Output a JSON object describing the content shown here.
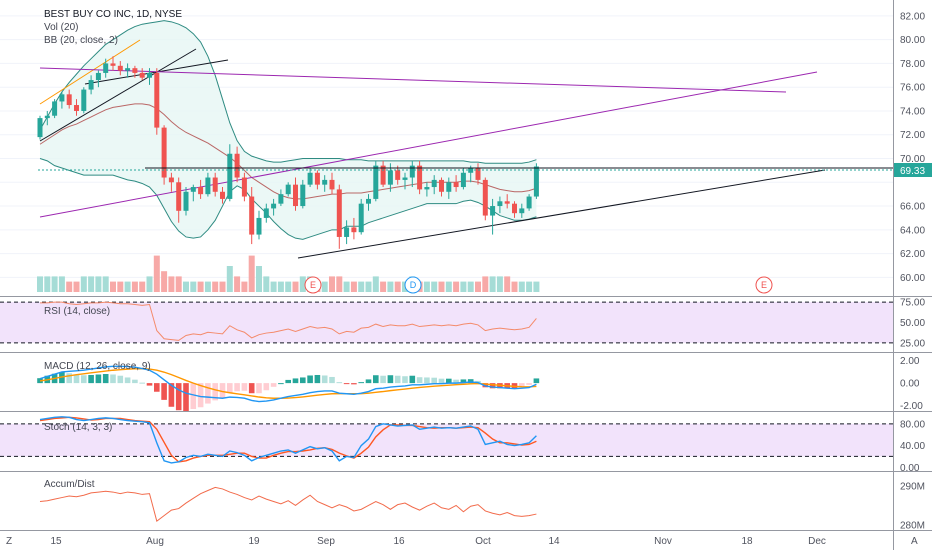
{
  "header": {
    "title": "BEST BUY CO INC, 1D, NYSE",
    "vol_label": "Vol (20)",
    "bb_label": "BB (20, close, 2)"
  },
  "price_axis": {
    "ticks": [
      "82.00",
      "80.00",
      "78.00",
      "76.00",
      "74.00",
      "72.00",
      "70.00",
      "66.00",
      "64.00",
      "62.00",
      "60.00"
    ],
    "current_price": "69.33"
  },
  "time_axis": {
    "labels": [
      "15",
      "Aug",
      "19",
      "Sep",
      "16",
      "Oct",
      "14",
      "Nov",
      "18",
      "Dec"
    ],
    "corner_left": "Z",
    "corner_right": "A"
  },
  "rsi_panel": {
    "label": "RSI (14, close)",
    "ticks": [
      "75.00",
      "50.00",
      "25.00"
    ]
  },
  "macd_panel": {
    "label": "MACD (12, 26, close, 9)",
    "ticks": [
      "2.00",
      "0.00",
      "-2.00"
    ]
  },
  "stoch_panel": {
    "label": "Stoch (14, 3, 3)",
    "ticks": [
      "80.00",
      "40.00",
      "0.00"
    ]
  },
  "ad_panel": {
    "label": "Accum/Dist",
    "ticks": [
      "290M",
      "280M"
    ]
  },
  "event_markers": [
    {
      "letter": "E",
      "type": "earnings"
    },
    {
      "letter": "D",
      "type": "dividend"
    },
    {
      "letter": "E",
      "type": "earnings"
    }
  ],
  "colors": {
    "up": "#26a69a",
    "down": "#ef5350",
    "vol_up": "#a5dcd6",
    "vol_down": "#f7a9a7",
    "bb_line": "#2e8b82",
    "bb_fill": "#e6f6f4",
    "bb_mid": "#a52a2a",
    "trend_black": "#131722",
    "trend_purple": "#9c27b0",
    "trend_orange": "#ff9800",
    "rsi_line": "#f48a6a",
    "osc_band": "#f2e3fb",
    "macd_line": "#2196f3",
    "signal_line": "#ff9800",
    "stoch_k": "#2196f3",
    "stoch_d": "#ff5722",
    "ad_line": "#f26b4b",
    "price_tag": "#26a69a"
  },
  "chart_data": [
    {
      "type": "candlestick",
      "title": "BEST BUY CO INC, 1D, NYSE",
      "ylim": [
        58.6,
        83.0
      ],
      "start_date": "2019-07-12",
      "candles": [
        {
          "o": 71.8,
          "h": 73.6,
          "l": 71.6,
          "c": 73.4
        },
        {
          "o": 73.4,
          "h": 74.0,
          "l": 72.8,
          "c": 73.6
        },
        {
          "o": 73.6,
          "h": 75.0,
          "l": 73.4,
          "c": 74.8
        },
        {
          "o": 74.8,
          "h": 75.6,
          "l": 74.2,
          "c": 75.4
        },
        {
          "o": 75.4,
          "h": 75.8,
          "l": 74.2,
          "c": 74.5
        },
        {
          "o": 74.5,
          "h": 75.0,
          "l": 73.6,
          "c": 74.0
        },
        {
          "o": 74.0,
          "h": 76.0,
          "l": 73.8,
          "c": 75.8
        },
        {
          "o": 75.8,
          "h": 77.0,
          "l": 75.4,
          "c": 76.6
        },
        {
          "o": 76.6,
          "h": 77.4,
          "l": 76.0,
          "c": 77.2
        },
        {
          "o": 77.2,
          "h": 78.4,
          "l": 76.8,
          "c": 78.0
        },
        {
          "o": 78.0,
          "h": 78.6,
          "l": 77.4,
          "c": 77.8
        },
        {
          "o": 77.8,
          "h": 78.2,
          "l": 77.0,
          "c": 77.4
        },
        {
          "o": 77.4,
          "h": 78.0,
          "l": 76.8,
          "c": 77.6
        },
        {
          "o": 77.6,
          "h": 77.8,
          "l": 76.8,
          "c": 77.2
        },
        {
          "o": 77.2,
          "h": 77.6,
          "l": 76.6,
          "c": 76.8
        },
        {
          "o": 76.8,
          "h": 77.6,
          "l": 76.2,
          "c": 77.2
        },
        {
          "o": 77.2,
          "h": 77.6,
          "l": 72.0,
          "c": 72.6
        },
        {
          "o": 72.6,
          "h": 72.8,
          "l": 67.8,
          "c": 68.4
        },
        {
          "o": 68.4,
          "h": 68.8,
          "l": 67.2,
          "c": 68.0
        },
        {
          "o": 68.0,
          "h": 68.4,
          "l": 64.6,
          "c": 65.6
        },
        {
          "o": 65.6,
          "h": 67.6,
          "l": 65.2,
          "c": 67.2
        },
        {
          "o": 67.2,
          "h": 67.8,
          "l": 66.4,
          "c": 67.6
        },
        {
          "o": 67.6,
          "h": 68.2,
          "l": 66.6,
          "c": 67.0
        },
        {
          "o": 67.0,
          "h": 68.8,
          "l": 66.8,
          "c": 68.4
        },
        {
          "o": 68.4,
          "h": 68.8,
          "l": 66.8,
          "c": 67.2
        },
        {
          "o": 67.2,
          "h": 67.6,
          "l": 66.2,
          "c": 66.6
        },
        {
          "o": 66.6,
          "h": 71.2,
          "l": 66.4,
          "c": 70.4
        },
        {
          "o": 70.4,
          "h": 71.0,
          "l": 68.0,
          "c": 68.4
        },
        {
          "o": 68.4,
          "h": 68.8,
          "l": 66.4,
          "c": 66.8
        },
        {
          "o": 66.8,
          "h": 67.6,
          "l": 62.8,
          "c": 63.6
        },
        {
          "o": 63.6,
          "h": 65.6,
          "l": 63.2,
          "c": 65.0
        },
        {
          "o": 65.0,
          "h": 66.2,
          "l": 64.6,
          "c": 65.8
        },
        {
          "o": 65.8,
          "h": 66.6,
          "l": 65.2,
          "c": 66.2
        },
        {
          "o": 66.2,
          "h": 67.4,
          "l": 66.0,
          "c": 67.0
        },
        {
          "o": 67.0,
          "h": 68.0,
          "l": 66.8,
          "c": 67.8
        },
        {
          "o": 67.8,
          "h": 68.4,
          "l": 65.6,
          "c": 66.0
        },
        {
          "o": 66.0,
          "h": 68.2,
          "l": 65.8,
          "c": 67.8
        },
        {
          "o": 67.8,
          "h": 69.2,
          "l": 67.6,
          "c": 68.8
        },
        {
          "o": 68.8,
          "h": 69.0,
          "l": 67.4,
          "c": 67.8
        },
        {
          "o": 67.8,
          "h": 68.6,
          "l": 67.2,
          "c": 68.2
        },
        {
          "o": 68.2,
          "h": 68.8,
          "l": 67.0,
          "c": 67.4
        },
        {
          "o": 67.4,
          "h": 67.8,
          "l": 62.4,
          "c": 63.4
        },
        {
          "o": 63.4,
          "h": 64.8,
          "l": 62.8,
          "c": 64.2
        },
        {
          "o": 64.2,
          "h": 65.0,
          "l": 63.2,
          "c": 63.8
        },
        {
          "o": 63.8,
          "h": 66.6,
          "l": 63.6,
          "c": 66.2
        },
        {
          "o": 66.2,
          "h": 67.0,
          "l": 65.6,
          "c": 66.6
        },
        {
          "o": 66.6,
          "h": 69.8,
          "l": 66.4,
          "c": 69.4
        },
        {
          "o": 69.4,
          "h": 69.8,
          "l": 67.6,
          "c": 67.8
        },
        {
          "o": 67.8,
          "h": 69.6,
          "l": 67.2,
          "c": 69.0
        },
        {
          "o": 69.0,
          "h": 69.4,
          "l": 67.8,
          "c": 68.2
        },
        {
          "o": 68.2,
          "h": 68.8,
          "l": 67.4,
          "c": 68.4
        },
        {
          "o": 68.4,
          "h": 69.8,
          "l": 67.6,
          "c": 69.4
        },
        {
          "o": 69.4,
          "h": 69.8,
          "l": 67.0,
          "c": 67.4
        },
        {
          "o": 67.4,
          "h": 68.0,
          "l": 66.8,
          "c": 67.6
        },
        {
          "o": 67.6,
          "h": 68.6,
          "l": 67.0,
          "c": 68.2
        },
        {
          "o": 68.2,
          "h": 68.4,
          "l": 66.8,
          "c": 67.2
        },
        {
          "o": 67.2,
          "h": 68.4,
          "l": 66.6,
          "c": 68.0
        },
        {
          "o": 68.0,
          "h": 68.6,
          "l": 67.2,
          "c": 67.6
        },
        {
          "o": 67.6,
          "h": 69.2,
          "l": 67.4,
          "c": 68.8
        },
        {
          "o": 68.8,
          "h": 69.4,
          "l": 68.0,
          "c": 69.2
        },
        {
          "o": 69.2,
          "h": 69.6,
          "l": 67.8,
          "c": 68.2
        },
        {
          "o": 68.2,
          "h": 68.4,
          "l": 64.8,
          "c": 65.2
        },
        {
          "o": 65.2,
          "h": 66.6,
          "l": 63.6,
          "c": 66.0
        },
        {
          "o": 66.0,
          "h": 66.8,
          "l": 65.4,
          "c": 66.4
        },
        {
          "o": 66.4,
          "h": 67.0,
          "l": 65.8,
          "c": 66.2
        },
        {
          "o": 66.2,
          "h": 66.4,
          "l": 65.0,
          "c": 65.4
        },
        {
          "o": 65.4,
          "h": 66.2,
          "l": 65.0,
          "c": 65.8
        },
        {
          "o": 65.8,
          "h": 67.0,
          "l": 65.6,
          "c": 66.8
        },
        {
          "o": 66.8,
          "h": 69.6,
          "l": 66.6,
          "c": 69.33
        }
      ],
      "volume": [
        3,
        3,
        3,
        3,
        2,
        2,
        3,
        3,
        3,
        3,
        2,
        2,
        2,
        2,
        2,
        3,
        7,
        4,
        3,
        3,
        2,
        2,
        2,
        2,
        2,
        2,
        5,
        3,
        2,
        7,
        5,
        3,
        2,
        2,
        2,
        2,
        3,
        3,
        2,
        2,
        3,
        3,
        2,
        2,
        2,
        2,
        3,
        2,
        2,
        2,
        2,
        3,
        2,
        2,
        2,
        2,
        2,
        2,
        2,
        2,
        2,
        3,
        3,
        3,
        3,
        2,
        2,
        2,
        2
      ],
      "bollinger": {
        "upper": [
          72.4,
          73.5,
          74.6,
          75.6,
          76.4,
          77.1,
          77.8,
          78.4,
          79.0,
          79.6,
          80.0,
          80.4,
          80.8,
          81.1,
          81.3,
          81.4,
          81.5,
          81.6,
          81.5,
          81.3,
          81.0,
          80.5,
          79.8,
          78.6,
          77.0,
          75.0,
          73.0,
          71.5,
          70.6,
          70.2,
          70.0,
          69.8,
          69.7,
          69.7,
          69.8,
          69.9,
          70.0,
          70.0,
          70.0,
          70.0,
          70.0,
          70.0,
          69.9,
          69.9,
          69.9,
          69.8,
          69.8,
          69.8,
          69.8,
          69.8,
          69.8,
          69.8,
          69.8,
          69.8,
          69.8,
          69.8,
          69.8,
          69.8,
          69.8,
          69.7,
          69.7,
          69.6,
          69.6,
          69.6,
          69.6,
          69.6,
          69.6,
          69.7,
          69.9
        ],
        "middle": [
          71.2,
          71.6,
          72.0,
          72.4,
          72.7,
          72.9,
          73.2,
          73.5,
          73.8,
          74.1,
          74.3,
          74.4,
          74.5,
          74.6,
          74.6,
          74.5,
          74.2,
          73.7,
          73.1,
          72.6,
          72.2,
          71.9,
          71.6,
          71.3,
          70.9,
          70.5,
          70.1,
          69.6,
          69.0,
          68.4,
          68.0,
          67.6,
          67.2,
          66.9,
          66.7,
          66.6,
          66.6,
          66.7,
          66.8,
          66.9,
          67.0,
          67.0,
          67.1,
          67.1,
          67.1,
          67.2,
          67.3,
          67.4,
          67.5,
          67.6,
          67.7,
          67.8,
          67.9,
          68.0,
          68.0,
          68.0,
          68.0,
          68.0,
          68.1,
          68.1,
          68.0,
          67.8,
          67.6,
          67.4,
          67.3,
          67.2,
          67.2,
          67.3,
          67.5
        ],
        "lower": [
          70.0,
          69.8,
          69.4,
          69.2,
          69.0,
          68.8,
          68.6,
          68.6,
          68.6,
          68.6,
          68.6,
          68.4,
          68.2,
          68.1,
          67.9,
          67.6,
          66.9,
          65.8,
          64.7,
          63.9,
          63.4,
          63.3,
          63.4,
          64.0,
          64.8,
          66.0,
          67.2,
          67.7,
          67.4,
          66.6,
          66.0,
          65.4,
          64.7,
          64.1,
          63.6,
          63.3,
          63.2,
          63.4,
          63.6,
          63.8,
          64.0,
          64.0,
          64.3,
          64.3,
          64.3,
          64.6,
          64.8,
          65.0,
          65.2,
          65.4,
          65.6,
          65.8,
          66.0,
          66.2,
          66.2,
          66.2,
          66.2,
          66.2,
          66.4,
          66.5,
          66.3,
          66.0,
          65.6,
          65.2,
          65.0,
          64.8,
          64.8,
          64.9,
          65.1
        ]
      }
    },
    {
      "type": "line",
      "title": "RSI (14, close)",
      "ylim": [
        15,
        80
      ],
      "reference_lines": [
        75,
        25
      ],
      "values": [
        74,
        74,
        75,
        75,
        73,
        72,
        73,
        74,
        74,
        75,
        74,
        73,
        73,
        72,
        71,
        72,
        40,
        30,
        29,
        28,
        34,
        36,
        35,
        38,
        37,
        36,
        46,
        41,
        38,
        31,
        35,
        37,
        38,
        40,
        42,
        39,
        42,
        45,
        43,
        44,
        42,
        36,
        39,
        38,
        43,
        44,
        48,
        45,
        47,
        46,
        46,
        48,
        45,
        46,
        47,
        46,
        47,
        46,
        48,
        49,
        47,
        40,
        42,
        43,
        42,
        41,
        42,
        44,
        55
      ]
    },
    {
      "type": "line",
      "title": "MACD (12, 26, close, 9)",
      "ylim": [
        -2.4,
        2.6
      ],
      "macd": [
        0.4,
        0.6,
        0.8,
        1.0,
        1.05,
        1.1,
        1.15,
        1.25,
        1.35,
        1.45,
        1.5,
        1.5,
        1.48,
        1.42,
        1.3,
        1.15,
        0.8,
        0.3,
        -0.2,
        -0.6,
        -0.9,
        -1.05,
        -1.2,
        -1.25,
        -1.3,
        -1.35,
        -1.25,
        -1.28,
        -1.35,
        -1.55,
        -1.65,
        -1.6,
        -1.5,
        -1.35,
        -1.2,
        -1.1,
        -1.0,
        -0.85,
        -0.75,
        -0.7,
        -0.7,
        -0.9,
        -0.95,
        -1.0,
        -0.9,
        -0.75,
        -0.5,
        -0.45,
        -0.35,
        -0.3,
        -0.25,
        -0.15,
        -0.15,
        -0.1,
        -0.05,
        -0.05,
        0.0,
        0.0,
        0.05,
        0.1,
        0.05,
        -0.25,
        -0.35,
        -0.4,
        -0.45,
        -0.5,
        -0.45,
        -0.4,
        -0.1
      ],
      "signal": [
        0.2,
        0.3,
        0.42,
        0.55,
        0.65,
        0.75,
        0.83,
        0.92,
        1.0,
        1.08,
        1.15,
        1.2,
        1.25,
        1.28,
        1.28,
        1.25,
        1.15,
        0.98,
        0.76,
        0.5,
        0.24,
        0.0,
        -0.22,
        -0.42,
        -0.6,
        -0.75,
        -0.86,
        -0.95,
        -1.04,
        -1.14,
        -1.24,
        -1.31,
        -1.35,
        -1.35,
        -1.33,
        -1.29,
        -1.23,
        -1.16,
        -1.08,
        -1.01,
        -0.95,
        -0.94,
        -0.94,
        -0.95,
        -0.94,
        -0.9,
        -0.82,
        -0.75,
        -0.67,
        -0.6,
        -0.53,
        -0.45,
        -0.39,
        -0.33,
        -0.27,
        -0.23,
        -0.18,
        -0.14,
        -0.1,
        -0.06,
        -0.04,
        -0.08,
        -0.14,
        -0.19,
        -0.24,
        -0.29,
        -0.32,
        -0.33,
        -0.29
      ]
    },
    {
      "type": "line",
      "title": "Stoch (14, 3, 3)",
      "ylim": [
        -5,
        100
      ],
      "reference_lines": [
        80,
        20
      ],
      "k": [
        88,
        90,
        92,
        93,
        92,
        88,
        86,
        88,
        90,
        91,
        90,
        88,
        86,
        85,
        84,
        82,
        45,
        12,
        8,
        10,
        18,
        22,
        20,
        24,
        22,
        20,
        30,
        27,
        22,
        12,
        18,
        22,
        26,
        30,
        32,
        26,
        32,
        38,
        34,
        36,
        30,
        12,
        20,
        18,
        40,
        52,
        75,
        80,
        78,
        76,
        77,
        78,
        70,
        72,
        74,
        72,
        73,
        72,
        74,
        76,
        70,
        42,
        45,
        48,
        42,
        40,
        42,
        45,
        58
      ],
      "d": [
        86,
        88,
        90,
        91,
        92,
        91,
        89,
        87,
        88,
        90,
        90,
        90,
        88,
        86,
        85,
        84,
        70,
        46,
        22,
        10,
        12,
        17,
        20,
        22,
        22,
        22,
        24,
        26,
        26,
        20,
        17,
        17,
        22,
        26,
        29,
        29,
        30,
        32,
        35,
        36,
        33,
        26,
        21,
        17,
        26,
        37,
        56,
        69,
        78,
        78,
        77,
        77,
        75,
        73,
        72,
        73,
        73,
        72,
        73,
        74,
        73,
        63,
        52,
        45,
        45,
        43,
        41,
        42,
        48
      ]
    },
    {
      "type": "line",
      "title": "Accum/Dist",
      "ylim": [
        279,
        293
      ],
      "values": [
        286.0,
        286.2,
        286.6,
        287.0,
        287.4,
        287.2,
        287.6,
        288.2,
        288.4,
        288.6,
        288.4,
        288.0,
        288.4,
        288.2,
        287.8,
        288.0,
        281.0,
        282.4,
        283.8,
        284.2,
        285.6,
        286.8,
        288.0,
        288.8,
        289.6,
        289.2,
        288.4,
        287.8,
        287.0,
        286.4,
        287.4,
        286.6,
        286.0,
        285.4,
        286.2,
        285.0,
        286.4,
        287.6,
        286.0,
        285.2,
        284.4,
        285.2,
        284.6,
        283.6,
        284.0,
        285.0,
        286.0,
        285.2,
        284.0,
        285.2,
        285.6,
        284.6,
        283.8,
        284.8,
        285.6,
        284.4,
        284.0,
        285.0,
        283.4,
        284.8,
        285.2,
        283.6,
        283.0,
        282.6,
        283.2,
        282.4,
        282.2,
        282.4,
        282.8
      ]
    }
  ]
}
